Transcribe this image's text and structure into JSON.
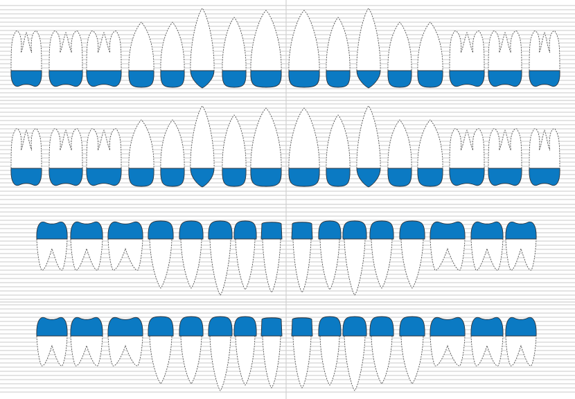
{
  "colors": {
    "crown": "#0b7ac3",
    "outline": "#555555",
    "grid": "#c8c8c8",
    "background": "#ffffff"
  },
  "chart_rows": [
    {
      "id": "upper-row-1",
      "arch": "upper",
      "teeth": [
        "molar",
        "molar",
        "molar",
        "premolar",
        "premolar",
        "canine",
        "lateral-incisor",
        "central-incisor",
        "central-incisor",
        "lateral-incisor",
        "canine",
        "premolar",
        "premolar",
        "molar",
        "molar",
        "molar"
      ]
    },
    {
      "id": "upper-row-2",
      "arch": "upper",
      "teeth": [
        "molar",
        "molar",
        "molar",
        "premolar",
        "premolar",
        "canine",
        "lateral-incisor",
        "central-incisor",
        "central-incisor",
        "lateral-incisor",
        "canine",
        "premolar",
        "premolar",
        "molar",
        "molar",
        "molar"
      ]
    },
    {
      "id": "lower-row-1",
      "arch": "lower",
      "teeth": [
        "molar",
        "molar",
        "molar",
        "premolar",
        "premolar",
        "canine",
        "lateral-incisor",
        "central-incisor",
        "central-incisor",
        "lateral-incisor",
        "canine",
        "premolar",
        "premolar",
        "molar",
        "molar",
        "molar"
      ]
    },
    {
      "id": "lower-row-2",
      "arch": "lower",
      "teeth": [
        "molar",
        "molar",
        "molar",
        "premolar",
        "premolar",
        "canine",
        "lateral-incisor",
        "central-incisor",
        "central-incisor",
        "lateral-incisor",
        "canine",
        "premolar",
        "premolar",
        "molar",
        "molar",
        "molar"
      ]
    }
  ]
}
